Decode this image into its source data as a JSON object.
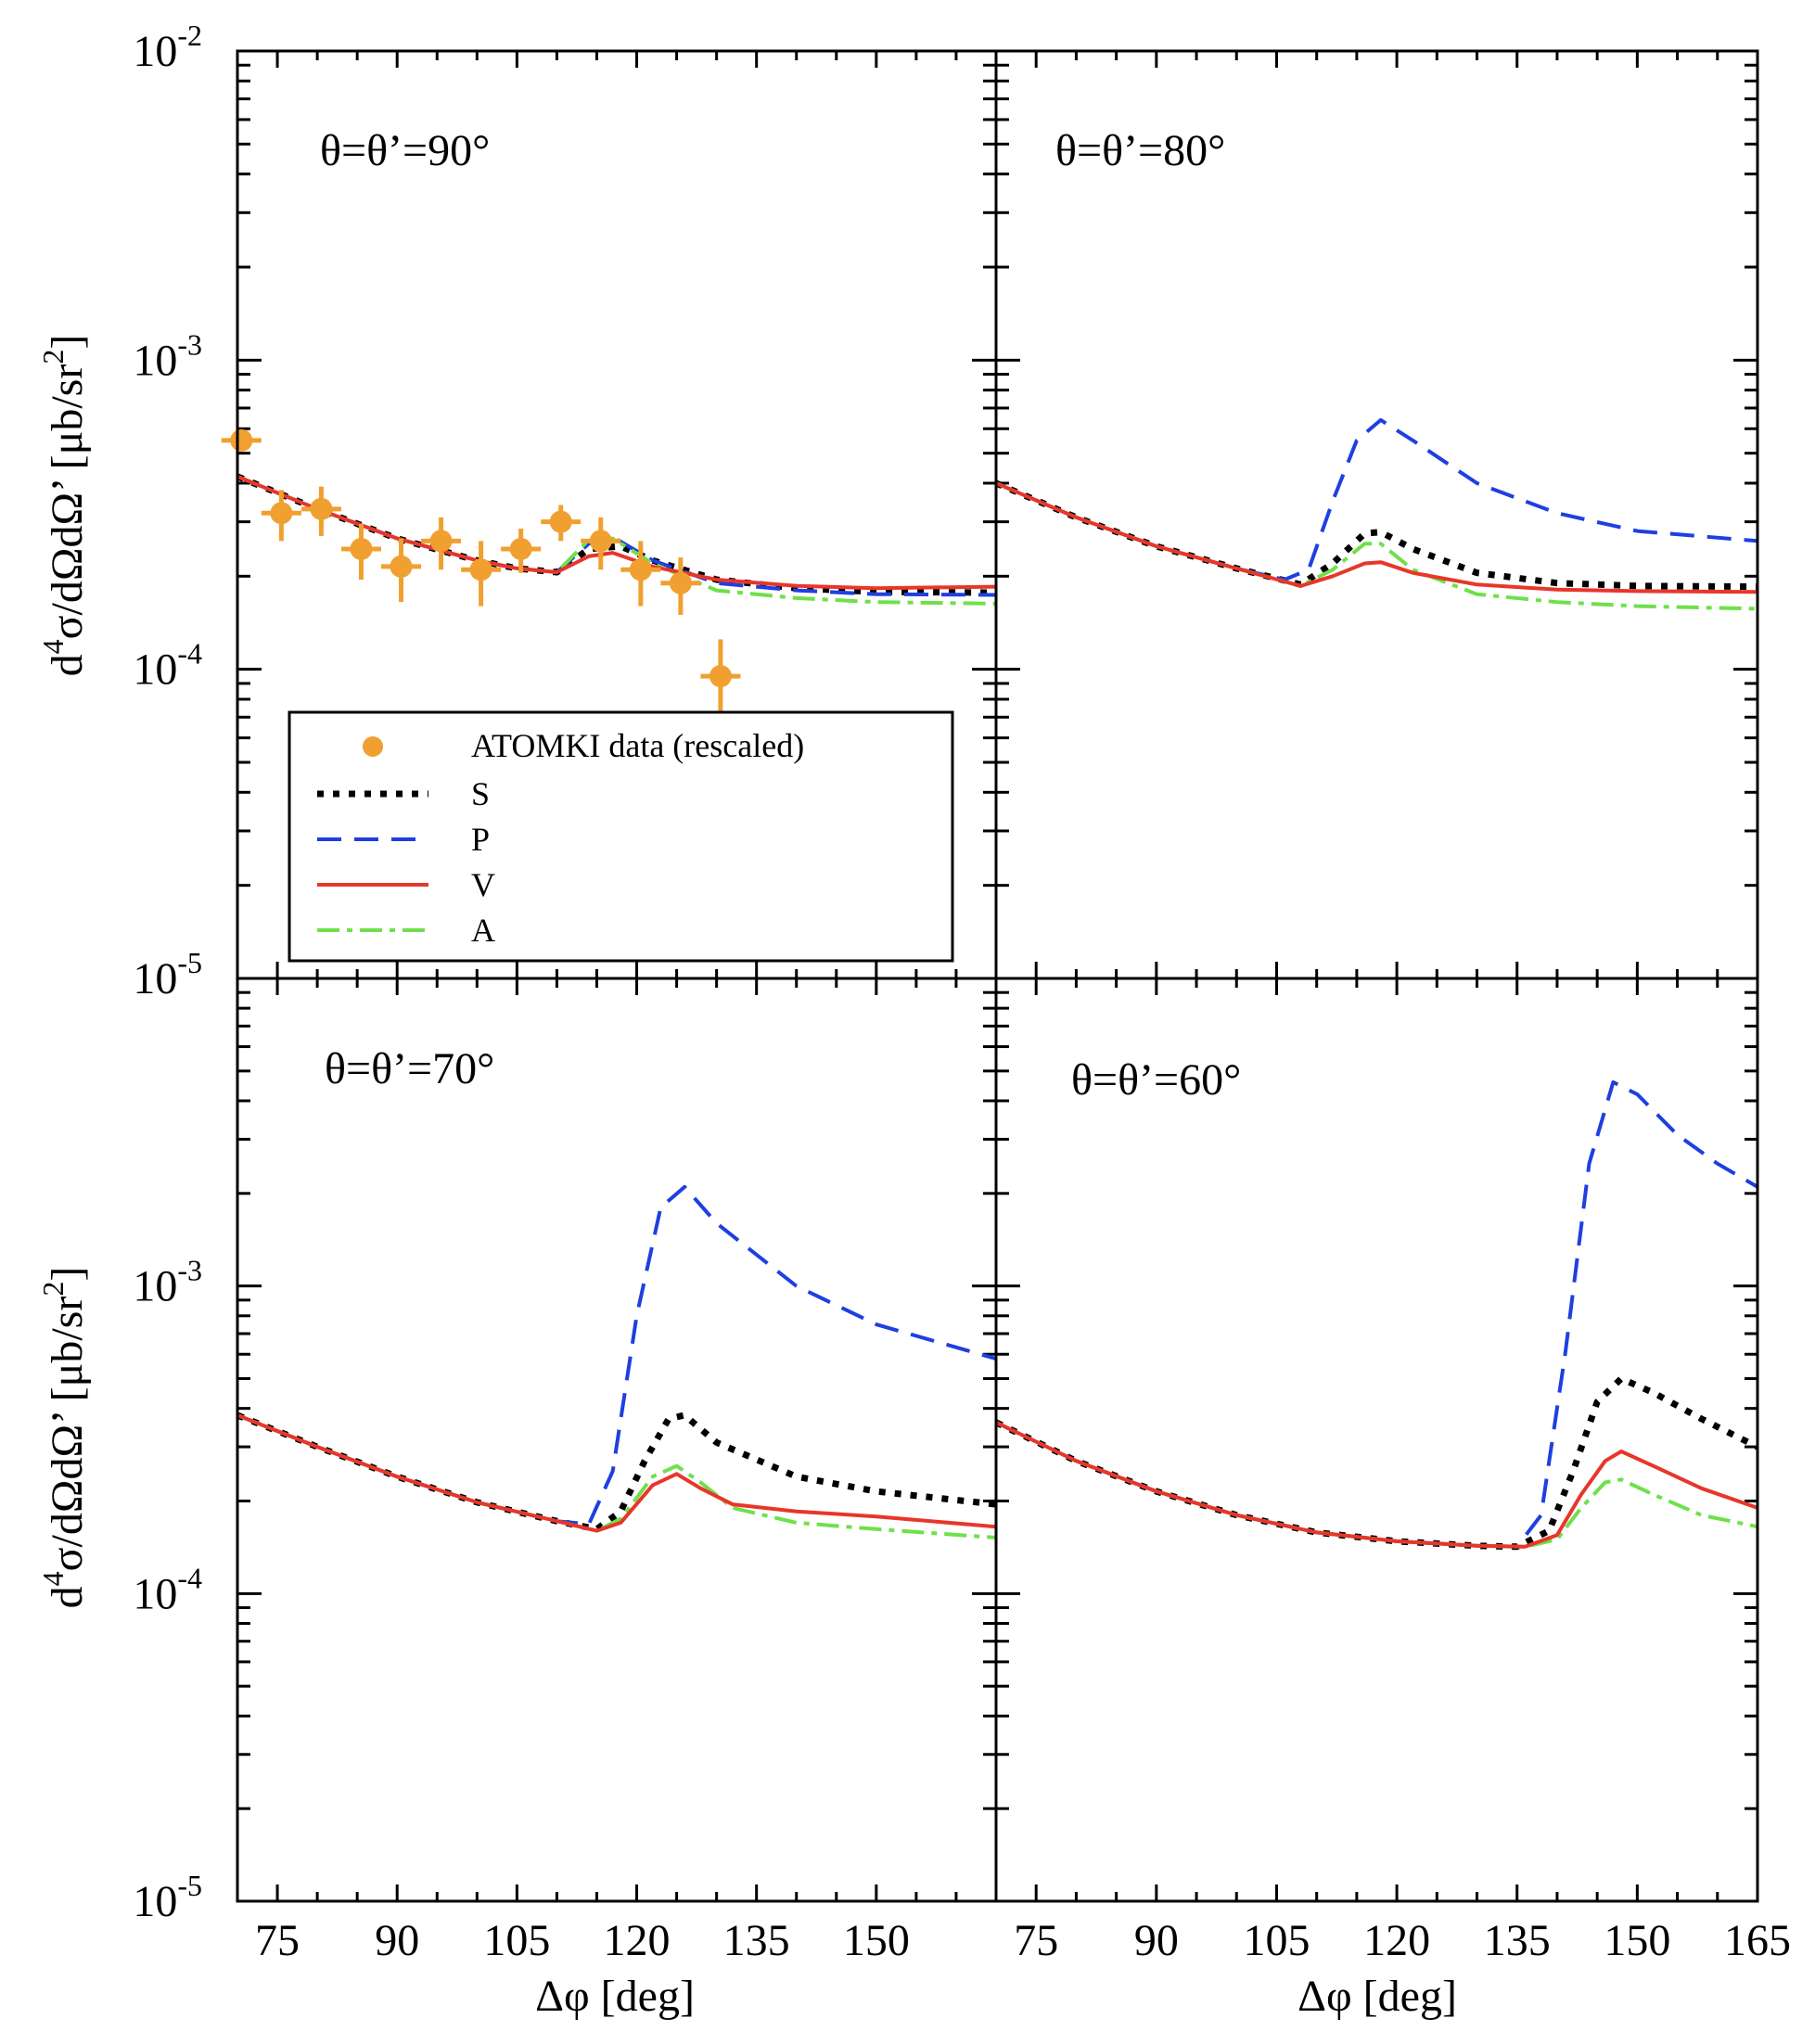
{
  "chart_data": {
    "type": "line",
    "layout": "2x2 panels, shared log-scale y axis",
    "x_label": "Δφ [deg]",
    "y_label_parts": [
      "d",
      "4",
      "σ/dΩdΩ’ [μb/sr",
      "2",
      "]"
    ],
    "y_scale": "log",
    "ylim": [
      1e-05,
      0.01
    ],
    "y_ticks": [
      {
        "mant": "10",
        "exp": "-5"
      },
      {
        "mant": "10",
        "exp": "-4"
      },
      {
        "mant": "10",
        "exp": "-3"
      },
      {
        "mant": "10",
        "exp": "-2"
      }
    ],
    "xlim": [
      70,
      165
    ],
    "x_ticks_left": [
      "75",
      "90",
      "105",
      "120",
      "135",
      "150"
    ],
    "x_ticks_right": [
      "75",
      "90",
      "105",
      "120",
      "135",
      "150",
      "165"
    ],
    "series_styles": {
      "S": {
        "color": "#000000",
        "dash": "dotted"
      },
      "P": {
        "color": "#1f3fe0",
        "dash": "dashed"
      },
      "V": {
        "color": "#e8362a",
        "dash": "solid"
      },
      "A": {
        "color": "#6fe04a",
        "dash": "dash-dot"
      },
      "data": {
        "color": "#f0a030"
      }
    },
    "legend": {
      "entries": [
        {
          "key": "data",
          "label": "ATOMKI data (rescaled)"
        },
        {
          "key": "S",
          "label": "S"
        },
        {
          "key": "P",
          "label": "P"
        },
        {
          "key": "V",
          "label": "V"
        },
        {
          "key": "A",
          "label": "A"
        }
      ]
    },
    "panels": [
      {
        "label": "θ=θ’=90°",
        "series": {
          "S": {
            "x": [
              70,
              80,
              90,
              100,
              105,
              110,
              114,
              118,
              122,
              130,
              140,
              150,
              165
            ],
            "y": [
              0.00042,
              0.00033,
              0.000265,
              0.000225,
              0.000212,
              0.000206,
              0.000245,
              0.00025,
              0.000225,
              0.000195,
              0.000183,
              0.000178,
              0.000177
            ]
          },
          "P": {
            "x": [
              70,
              80,
              90,
              100,
              105,
              110,
              114,
              117,
              122,
              130,
              140,
              150,
              165
            ],
            "y": [
              0.00042,
              0.00033,
              0.000265,
              0.000225,
              0.000212,
              0.000206,
              0.000255,
              0.000268,
              0.000225,
              0.00019,
              0.00018,
              0.000175,
              0.000174
            ]
          },
          "V": {
            "x": [
              70,
              80,
              90,
              100,
              105,
              110,
              114,
              117,
              122,
              130,
              140,
              150,
              165
            ],
            "y": [
              0.00042,
              0.00033,
              0.000265,
              0.000225,
              0.000212,
              0.000206,
              0.000232,
              0.000238,
              0.000215,
              0.000195,
              0.000186,
              0.000183,
              0.000185
            ]
          },
          "A": {
            "x": [
              70,
              80,
              90,
              100,
              105,
              110,
              114,
              117,
              122,
              130,
              140,
              150,
              165
            ],
            "y": [
              0.00042,
              0.00033,
              0.000265,
              0.000225,
              0.000212,
              0.000206,
              0.000262,
              0.000265,
              0.00022,
              0.00018,
              0.00017,
              0.000165,
              0.000163
            ]
          }
        },
        "data_points": {
          "x": [
            70.5,
            75.5,
            80.5,
            85.5,
            90.5,
            95.5,
            100.5,
            105.5,
            110.5,
            115.5,
            120.5,
            125.5,
            130.5
          ],
          "y": [
            0.00055,
            0.00032,
            0.00033,
            0.000245,
            0.000215,
            0.00026,
            0.00021,
            0.000245,
            0.0003,
            0.00026,
            0.00021,
            0.00019,
            9.5e-05
          ],
          "y_err": [
            4e-05,
            6e-05,
            6e-05,
            5e-05,
            5e-05,
            5e-05,
            5e-05,
            4e-05,
            4e-05,
            5e-05,
            5e-05,
            4e-05,
            3e-05
          ],
          "x_err": [
            2.5,
            2.5,
            2.5,
            2.5,
            2.5,
            2.5,
            2.5,
            2.5,
            2.5,
            2.5,
            2.5,
            2.5,
            2.5
          ]
        }
      },
      {
        "label": "θ=θ’=80°",
        "series": {
          "S": {
            "x": [
              70,
              80,
              90,
              100,
              108,
              112,
              116,
              118,
              122,
              130,
              140,
              150,
              165
            ],
            "y": [
              0.0004,
              0.00031,
              0.00025,
              0.000212,
              0.000188,
              0.00022,
              0.000275,
              0.000278,
              0.000245,
              0.000205,
              0.00019,
              0.000186,
              0.000185
            ]
          },
          "P": {
            "x": [
              70,
              80,
              90,
              100,
              106,
              109,
              112,
              115,
              118,
              122,
              130,
              140,
              150,
              165
            ],
            "y": [
              0.0004,
              0.00031,
              0.00025,
              0.000212,
              0.000195,
              0.00021,
              0.00035,
              0.00055,
              0.00064,
              0.00055,
              0.0004,
              0.00032,
              0.00028,
              0.00026
            ]
          },
          "V": {
            "x": [
              70,
              80,
              90,
              100,
              108,
              112,
              116,
              118,
              122,
              130,
              140,
              150,
              165
            ],
            "y": [
              0.0004,
              0.00031,
              0.00025,
              0.000212,
              0.000186,
              0.0002,
              0.00022,
              0.000222,
              0.000205,
              0.000188,
              0.000181,
              0.000179,
              0.000178
            ]
          },
          "A": {
            "x": [
              70,
              80,
              90,
              100,
              108,
              112,
              116,
              118,
              122,
              130,
              140,
              150,
              165
            ],
            "y": [
              0.0004,
              0.00031,
              0.00025,
              0.000212,
              0.000186,
              0.00021,
              0.000255,
              0.000255,
              0.00021,
              0.000175,
              0.000165,
              0.00016,
              0.000157
            ]
          }
        }
      },
      {
        "label": "θ=θ’=70°",
        "series": {
          "S": {
            "x": [
              70,
              80,
              90,
              100,
              110,
              115,
              118,
              121,
              124,
              126,
              130,
              140,
              150,
              165
            ],
            "y": [
              0.00038,
              0.0003,
              0.00024,
              0.000198,
              0.000172,
              0.000162,
              0.000185,
              0.00027,
              0.00037,
              0.00038,
              0.00031,
              0.00024,
              0.000215,
              0.000195
            ]
          },
          "P": {
            "x": [
              70,
              80,
              90,
              100,
              110,
              114,
              117,
              120,
              123,
              126,
              130,
              140,
              150,
              165
            ],
            "y": [
              0.00038,
              0.0003,
              0.00024,
              0.000198,
              0.000172,
              0.000168,
              0.00025,
              0.0008,
              0.0018,
              0.0021,
              0.0016,
              0.001,
              0.00075,
              0.00058
            ]
          },
          "V": {
            "x": [
              70,
              80,
              90,
              100,
              110,
              115,
              118,
              122,
              125,
              128,
              132,
              140,
              150,
              165
            ],
            "y": [
              0.00038,
              0.0003,
              0.00024,
              0.000198,
              0.000172,
              0.00016,
              0.00017,
              0.000225,
              0.000245,
              0.00022,
              0.000195,
              0.000185,
              0.000178,
              0.000165
            ]
          },
          "A": {
            "x": [
              70,
              80,
              90,
              100,
              110,
              115,
              118,
              122,
              125,
              128,
              132,
              140,
              150,
              165
            ],
            "y": [
              0.00038,
              0.0003,
              0.00024,
              0.000198,
              0.000172,
              0.00016,
              0.000175,
              0.00024,
              0.00026,
              0.00023,
              0.00019,
              0.00017,
              0.000162,
              0.000152
            ]
          }
        }
      },
      {
        "label": "θ=θ’=60°",
        "series": {
          "S": {
            "x": [
              70,
              80,
              90,
              100,
              110,
              120,
              130,
              135,
              139,
              142,
              145,
              148,
              152,
              158,
              165
            ],
            "y": [
              0.00036,
              0.00027,
              0.000215,
              0.00018,
              0.000158,
              0.000148,
              0.000143,
              0.000142,
              0.00016,
              0.00025,
              0.00042,
              0.0005,
              0.00045,
              0.00037,
              0.0003
            ]
          },
          "P": {
            "x": [
              70,
              80,
              90,
              100,
              110,
              120,
              130,
              135,
              138,
              141,
              144,
              147,
              150,
              155,
              160,
              165
            ],
            "y": [
              0.00036,
              0.00027,
              0.000215,
              0.00018,
              0.000158,
              0.000148,
              0.000143,
              0.000142,
              0.00018,
              0.0006,
              0.0025,
              0.0046,
              0.0042,
              0.0031,
              0.0025,
              0.0021
            ]
          },
          "V": {
            "x": [
              70,
              80,
              90,
              100,
              110,
              120,
              130,
              136,
              140,
              143,
              146,
              148,
              152,
              158,
              165
            ],
            "y": [
              0.00036,
              0.00027,
              0.000215,
              0.00018,
              0.000158,
              0.000148,
              0.000143,
              0.000142,
              0.000155,
              0.00021,
              0.00027,
              0.00029,
              0.00026,
              0.00022,
              0.00019
            ]
          },
          "A": {
            "x": [
              70,
              80,
              90,
              100,
              110,
              120,
              130,
              136,
              140,
              143,
              146,
              148,
              152,
              158,
              165
            ],
            "y": [
              0.00036,
              0.00027,
              0.000215,
              0.00018,
              0.000158,
              0.000148,
              0.000143,
              0.000142,
              0.00015,
              0.00019,
              0.00023,
              0.000235,
              0.00021,
              0.00018,
              0.000165
            ]
          }
        }
      }
    ]
  }
}
